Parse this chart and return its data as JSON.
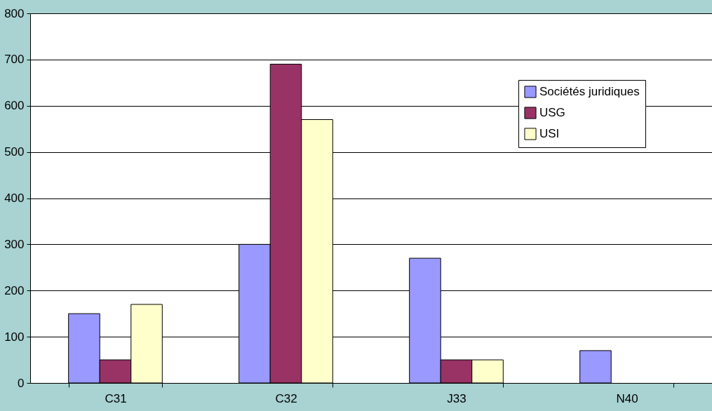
{
  "chart_data": {
    "type": "bar",
    "categories": [
      "C31",
      "C32",
      "J33",
      "N40"
    ],
    "series": [
      {
        "name": "Sociétés juridiques",
        "color": "#9999ff",
        "values": [
          150,
          300,
          270,
          70
        ]
      },
      {
        "name": "USG",
        "color": "#993366",
        "values": [
          50,
          690,
          50,
          null
        ]
      },
      {
        "name": "USI",
        "color": "#ffffcc",
        "values": [
          170,
          570,
          50,
          null
        ]
      }
    ],
    "ylim": [
      0,
      800
    ],
    "yticks": [
      0,
      100,
      200,
      300,
      400,
      500,
      600,
      700,
      800
    ],
    "grid": "y",
    "legend": "top right"
  }
}
